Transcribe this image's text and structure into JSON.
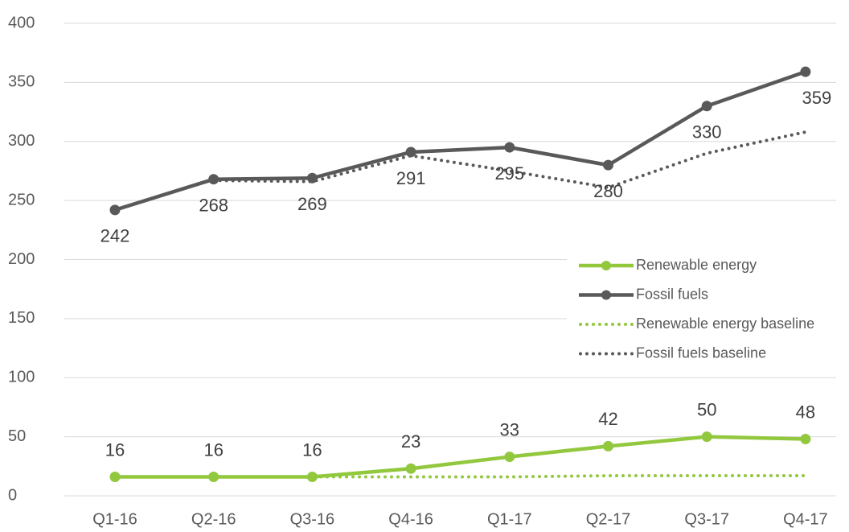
{
  "chart_data": {
    "type": "line",
    "categories": [
      "Q1-16",
      "Q2-16",
      "Q3-16",
      "Q4-16",
      "Q1-17",
      "Q2-17",
      "Q3-17",
      "Q4-17"
    ],
    "series": [
      {
        "name": "Renewable energy",
        "color": "#92c83e",
        "style": "solid",
        "marker": true,
        "label_position": "above",
        "values": [
          16,
          16,
          16,
          23,
          33,
          42,
          50,
          48
        ]
      },
      {
        "name": "Fossil fuels",
        "color": "#595959",
        "style": "solid",
        "marker": true,
        "label_position": "below",
        "values": [
          242,
          268,
          269,
          291,
          295,
          280,
          330,
          359
        ]
      },
      {
        "name": "Renewable energy baseline",
        "color": "#92c83e",
        "style": "dotted",
        "marker": false,
        "values": [
          16,
          16,
          16,
          16,
          16,
          17,
          17,
          17
        ]
      },
      {
        "name": "Fossil fuels baseline",
        "color": "#595959",
        "style": "dotted",
        "marker": false,
        "values": [
          null,
          267,
          266,
          288,
          275,
          261,
          290,
          308
        ]
      }
    ],
    "ylim": [
      0,
      400
    ],
    "yticks": [
      0,
      50,
      100,
      150,
      200,
      250,
      300,
      350,
      400
    ],
    "grid": true,
    "legend": "right"
  }
}
